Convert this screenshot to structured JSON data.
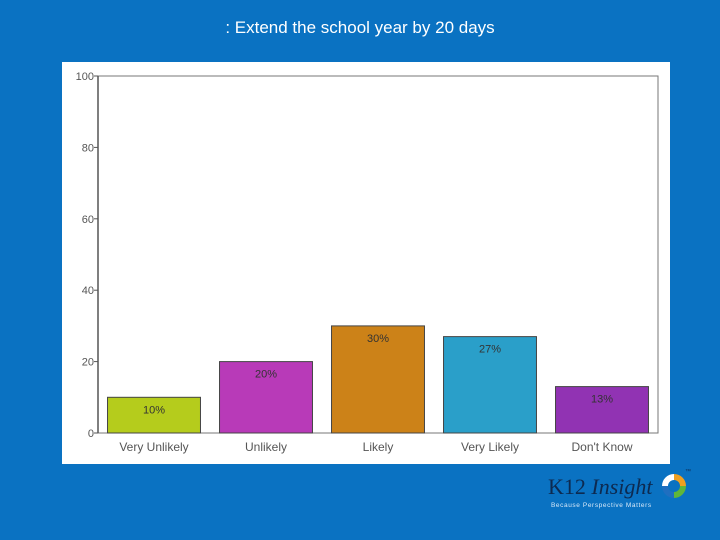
{
  "slide": {
    "title": ": Extend the school year by 20 days"
  },
  "logo": {
    "brand_main": "K12 ",
    "brand_italic": "Insight",
    "trademark": "™",
    "tagline": "Because Perspective Matters"
  },
  "colors": {
    "background": "#0a72c2",
    "panel": "#ffffff",
    "axis": "#555555",
    "bar_outline": "#444444",
    "bar_label": "#333333"
  },
  "chart_data": {
    "type": "bar",
    "title": ": Extend the school year by 20 days",
    "xlabel": "",
    "ylabel": "",
    "ylim": [
      0,
      100
    ],
    "yticks": [
      "0",
      "20",
      "40",
      "60",
      "80",
      "100"
    ],
    "categories": [
      "Very Unlikely",
      "Unlikely",
      "Likely",
      "Very Likely",
      "Don't Know"
    ],
    "values": [
      10,
      20,
      30,
      27,
      13
    ],
    "value_labels": [
      "10%",
      "20%",
      "30%",
      "27%",
      "13%"
    ],
    "colors": [
      "#b5cc1c",
      "#b83ab8",
      "#cc8218",
      "#2a9fc9",
      "#9133b3"
    ],
    "grid": false,
    "legend": "none"
  }
}
